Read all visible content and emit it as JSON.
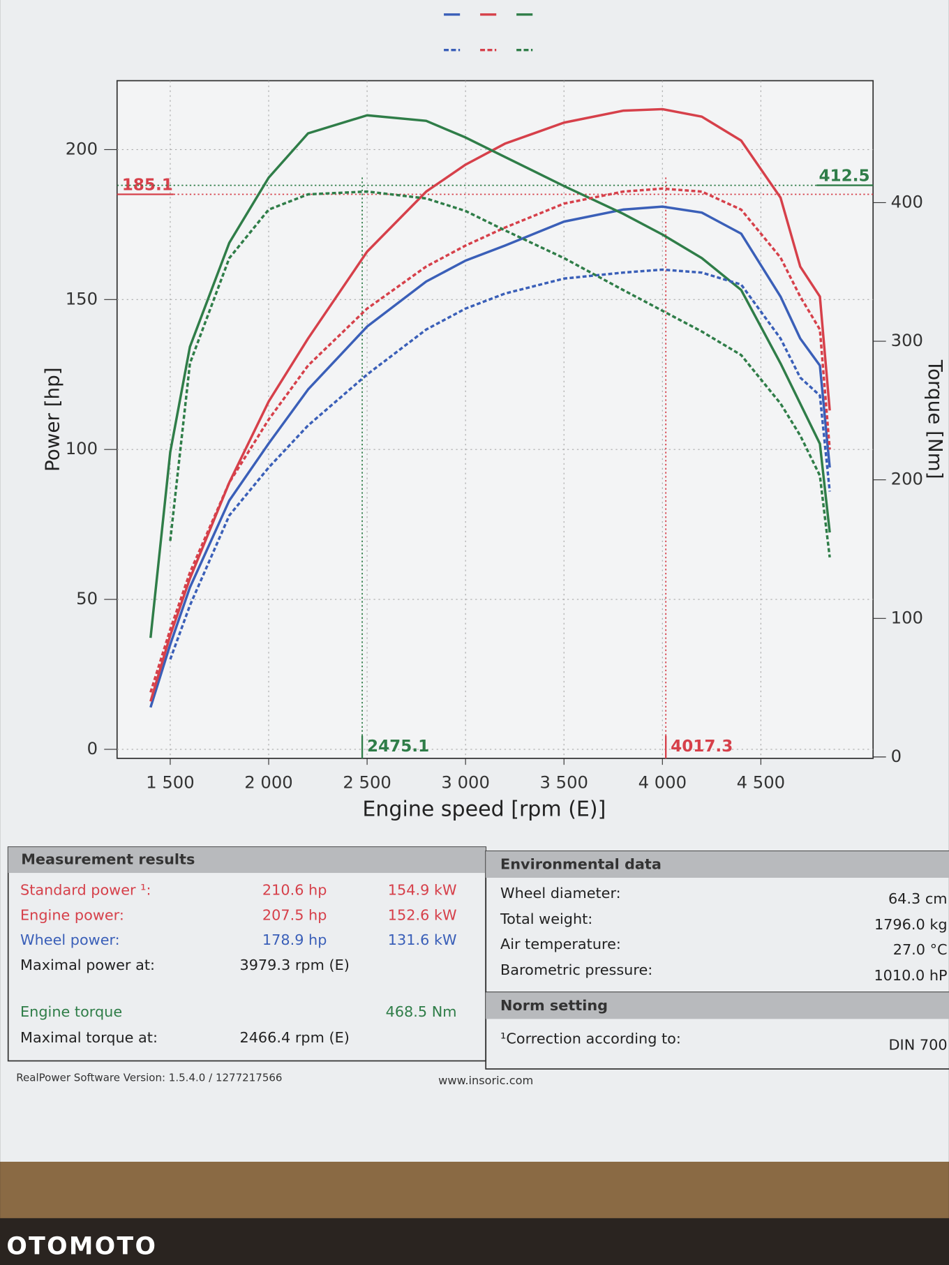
{
  "chart_data": {
    "type": "line",
    "x_label": "Engine speed [rpm (E)]",
    "y_label": "Power [hp]",
    "y2_label": "Torque [Nm]",
    "x": [
      1400,
      1500,
      1600,
      1800,
      2000,
      2200,
      2500,
      2800,
      3000,
      3200,
      3500,
      3800,
      4000,
      4200,
      4400,
      4600,
      4700,
      4800,
      4850
    ],
    "series": [
      {
        "color": "#3a5fb8",
        "dash": false,
        "values": [
          14,
          35,
          54,
          83,
          102,
          120,
          141,
          156,
          163,
          168,
          176,
          180,
          181,
          179,
          172,
          151,
          137,
          128,
          94
        ]
      },
      {
        "color": "#d6404a",
        "dash": false,
        "values": [
          16,
          38,
          57,
          89,
          116,
          137,
          166,
          186,
          195,
          202,
          209,
          213,
          213.5,
          211,
          203,
          184,
          161,
          151,
          113
        ]
      },
      {
        "color": "#2f7d48",
        "dash": false,
        "axis": "y2",
        "values": [
          86,
          220,
          296,
          371,
          418,
          450,
          463,
          459,
          447,
          433,
          412,
          392,
          377,
          360,
          337,
          284,
          255,
          226,
          162
        ]
      },
      {
        "color": "#3a5fb8",
        "dash": true,
        "values": [
          null,
          30,
          48,
          78,
          94,
          108,
          125,
          140,
          147,
          152,
          157,
          159,
          160,
          159,
          155,
          137,
          124,
          118,
          86
        ]
      },
      {
        "color": "#d6404a",
        "dash": true,
        "values": [
          19,
          40,
          59,
          89,
          110,
          128,
          147,
          161,
          168,
          174,
          182,
          186,
          187,
          186,
          180,
          164,
          151,
          140,
          100
        ]
      },
      {
        "color": "#2f7d48",
        "dash": true,
        "axis": "y2",
        "values": [
          null,
          156,
          284,
          360,
          395,
          406,
          408,
          403,
          394,
          380,
          360,
          337,
          322,
          307,
          290,
          255,
          232,
          203,
          144
        ]
      }
    ],
    "xlim": [
      1230,
      5070
    ],
    "ylim": [
      -3,
      223
    ],
    "y2lim": [
      -1,
      488
    ],
    "xticks": [
      {
        "value": 1500,
        "label": "1 500"
      },
      {
        "value": 2000,
        "label": "2 000"
      },
      {
        "value": 2500,
        "label": "2 500"
      },
      {
        "value": 3000,
        "label": "3 000"
      },
      {
        "value": 3500,
        "label": "3 500"
      },
      {
        "value": 4000,
        "label": "4 000"
      },
      {
        "value": 4500,
        "label": "4 500"
      }
    ],
    "yticks": [
      0,
      50,
      100,
      150,
      200
    ],
    "y2ticks": [
      0,
      100,
      200,
      300,
      400
    ],
    "grid": true,
    "hlines": [
      {
        "value": 185.1,
        "axis": "y",
        "color": "#d6404a"
      },
      {
        "value": 412.5,
        "axis": "y2",
        "color": "#2f7d48"
      }
    ],
    "vlines": [
      {
        "value": 2475.1,
        "color": "#2f7d48"
      },
      {
        "value": 4017.3,
        "color": "#d6404a"
      }
    ]
  },
  "measurement": {
    "title": "Measurement results",
    "rows": [
      {
        "label": "Standard power ¹:",
        "mid": "210.6 hp",
        "right": "154.9 kW",
        "color": "#d6404a"
      },
      {
        "label": "Engine power:",
        "mid": "207.5 hp",
        "right": "152.6 kW",
        "color": "#d6404a"
      },
      {
        "label": "Wheel power:",
        "mid": "178.9 hp",
        "right": "131.6 kW",
        "color": "#3a5fb8"
      },
      {
        "label": "Maximal power at:",
        "mid": "3979.3 rpm (E)",
        "color": "#222222"
      },
      {
        "label": "Engine torque",
        "right": "468.5 Nm",
        "color": "#2f7d48"
      },
      {
        "label": "Maximal torque at:",
        "mid": "2466.4 rpm (E)",
        "color": "#222222"
      }
    ]
  },
  "environment": {
    "title": "Environmental data",
    "rows": [
      [
        "Wheel diameter:",
        "64.3 cm"
      ],
      [
        "Total weight:",
        "1796.0 kg"
      ],
      [
        "Air temperature:",
        "27.0 °C"
      ],
      [
        "Barometric pressure:",
        "1010.0 hP"
      ]
    ]
  },
  "norm": {
    "title": "Norm setting",
    "rows": [
      [
        "¹Correction according to:",
        "DIN 700"
      ]
    ]
  },
  "footer": {
    "software": "RealPower Software Version: 1.5.4.0 / 1277217566",
    "website": "www.insoric.com"
  },
  "watermark": "OTOMOTO"
}
